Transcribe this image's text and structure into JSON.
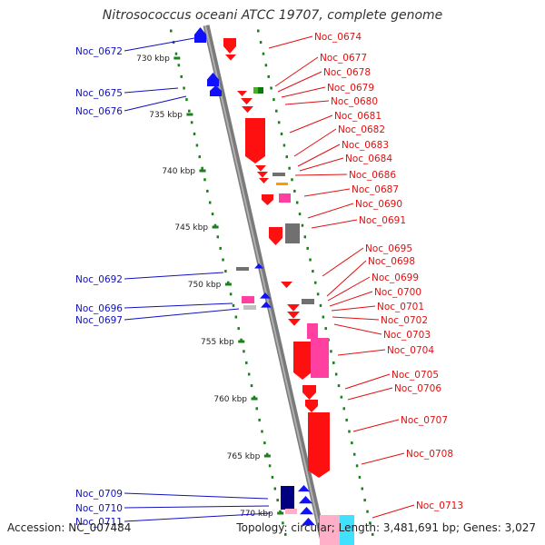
{
  "title": "Nitrosococcus oceani ATCC 19707, complete genome",
  "accession": "Accession: NC_007484",
  "stats": "Topology: circular; Length: 3,481,691 bp; Genes: 3,027",
  "colors": {
    "backbone": "#8a8a8a",
    "tick": "#1b7f1b",
    "left_label": "#1010c0",
    "right_label": "#e01010",
    "red": "#ff1010",
    "blue": "#1010ff",
    "dark_blue": "#000080",
    "pink": "#ff40a0",
    "light_pink": "#ffb0c8",
    "gray": "#707070",
    "light_gray": "#c0c0c0",
    "green": "#4caf20",
    "orange": "#ff9a00",
    "cyan": "#40e0ff"
  },
  "scale_labels": [
    "730 kbp",
    "735 kbp",
    "740 kbp",
    "745 kbp",
    "750 kbp",
    "755 kbp",
    "760 kbp",
    "765 kbp",
    "770 kbp"
  ],
  "left_genes": [
    "Noc_0672",
    "Noc_0675",
    "Noc_0676",
    "Noc_0692",
    "Noc_0696",
    "Noc_0697",
    "Noc_0709",
    "Noc_0710",
    "Noc_0711"
  ],
  "right_genes": [
    "Noc_0674",
    "Noc_0677",
    "Noc_0678",
    "Noc_0679",
    "Noc_0680",
    "Noc_0681",
    "Noc_0682",
    "Noc_0683",
    "Noc_0684",
    "Noc_0686",
    "Noc_0687",
    "Noc_0690",
    "Noc_0691",
    "Noc_0695",
    "Noc_0698",
    "Noc_0699",
    "Noc_0700",
    "Noc_0701",
    "Noc_0702",
    "Noc_0703",
    "Noc_0704",
    "Noc_0705",
    "Noc_0706",
    "Noc_0707",
    "Noc_0708",
    "Noc_0713"
  ]
}
